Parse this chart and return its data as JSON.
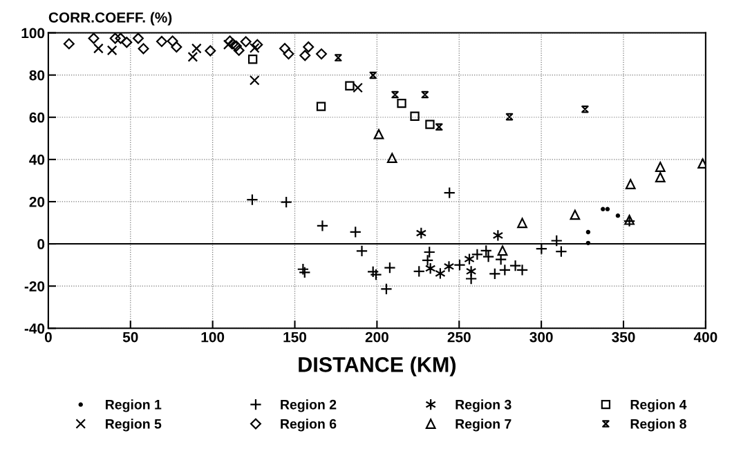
{
  "chart_data": {
    "type": "scatter",
    "xlabel": "DISTANCE (KM)",
    "ylabel": "CORR.COEFF. (%)",
    "xlim": [
      0,
      400
    ],
    "ylim": [
      -40,
      100
    ],
    "xticks": [
      0,
      50,
      100,
      150,
      200,
      250,
      300,
      350,
      400
    ],
    "yticks": [
      -40,
      -20,
      0,
      20,
      40,
      60,
      80,
      100
    ],
    "grid": true,
    "legend": "bottom",
    "ref_lines": [
      {
        "axis": "y",
        "value": 0,
        "color": "#000000",
        "line_style": "solid"
      }
    ],
    "series": [
      {
        "name": "Region 1",
        "color": "#000000",
        "marker": "point",
        "x": [
          337.5,
          340.3,
          346.6,
          328.5,
          328.5
        ],
        "values": [
          16.5,
          16.5,
          13.4,
          5.6,
          0.4
        ]
      },
      {
        "name": "Region 2",
        "color": "#000000",
        "marker": "plus",
        "x": [
          124.1,
          144.8,
          166.8,
          186.9,
          190.8,
          155.0,
          156.0,
          197.6,
          199.4,
          207.8,
          205.7,
          244.1,
          225.6,
          231.9,
          230.8,
          250.3,
          257.3,
          261.0,
          266.4,
          267.8,
          271.7,
          275.4,
          277.8,
          284.2,
          288.4,
          300.1,
          309.3,
          312.1,
          353.6
        ],
        "values": [
          20.9,
          19.8,
          8.6,
          5.6,
          -3.4,
          -12.0,
          -13.5,
          -13.2,
          -14.6,
          -11.3,
          -21.4,
          24.2,
          -13.0,
          -3.9,
          -7.8,
          -10.0,
          -16.5,
          -5.0,
          -3.2,
          -6.1,
          -14.2,
          -7.4,
          -12.4,
          -10.3,
          -12.4,
          -2.3,
          1.5,
          -3.6,
          10.8
        ]
      },
      {
        "name": "Region 3",
        "color": "#000000",
        "marker": "cross",
        "x": [
          226.9,
          273.6,
          232.5,
          238.5,
          243.8,
          256.2,
          257.3
        ],
        "values": [
          5.1,
          4.0,
          -11.6,
          -14.0,
          -10.7,
          -7.2,
          -13.0
        ]
      },
      {
        "name": "Region 4",
        "color": "#000000",
        "marker": "square",
        "x": [
          124.4,
          183.4,
          166.0,
          215.0,
          223.0,
          232.2
        ],
        "values": [
          87.5,
          74.9,
          65.1,
          66.6,
          60.5,
          56.6
        ]
      },
      {
        "name": "Region 5",
        "color": "#000000",
        "marker": "x",
        "x": [
          30.5,
          38.8,
          87.9,
          90.2,
          109.5,
          125.5,
          125.5,
          188.3
        ],
        "values": [
          92.6,
          91.7,
          88.6,
          92.6,
          94.4,
          92.8,
          77.5,
          74.0
        ]
      },
      {
        "name": "Region 6",
        "color": "#000000",
        "marker": "diamond",
        "x": [
          12.6,
          27.6,
          40.7,
          44.0,
          47.7,
          54.7,
          57.9,
          69.0,
          75.6,
          78.0,
          98.6,
          110.5,
          112.3,
          114.4,
          116.0,
          120.2,
          127.2,
          143.9,
          146.2,
          158.3,
          156.2,
          166.2
        ],
        "values": [
          94.8,
          97.4,
          97.4,
          97.4,
          95.5,
          97.4,
          92.5,
          95.9,
          96.1,
          93.3,
          91.5,
          96.1,
          94.8,
          93.7,
          91.7,
          95.8,
          94.4,
          92.6,
          90.0,
          93.3,
          89.3,
          90.0
        ]
      },
      {
        "name": "Region 7",
        "color": "#000000",
        "marker": "triangle",
        "x": [
          201.1,
          209.2,
          276.4,
          288.4,
          320.5,
          353.6,
          354.3,
          372.4,
          372.4,
          398.2
        ],
        "values": [
          52.0,
          40.7,
          -3.2,
          9.9,
          13.8,
          11.4,
          28.3,
          31.6,
          36.5,
          38.1
        ]
      },
      {
        "name": "Region 8",
        "color": "#000000",
        "x": [
          176.4,
          197.6,
          211.0,
          229.2,
          237.8,
          280.6,
          326.6
        ],
        "values": [
          88.2,
          79.9,
          70.7,
          70.7,
          55.4,
          60.2,
          63.8
        ]
      }
    ]
  }
}
